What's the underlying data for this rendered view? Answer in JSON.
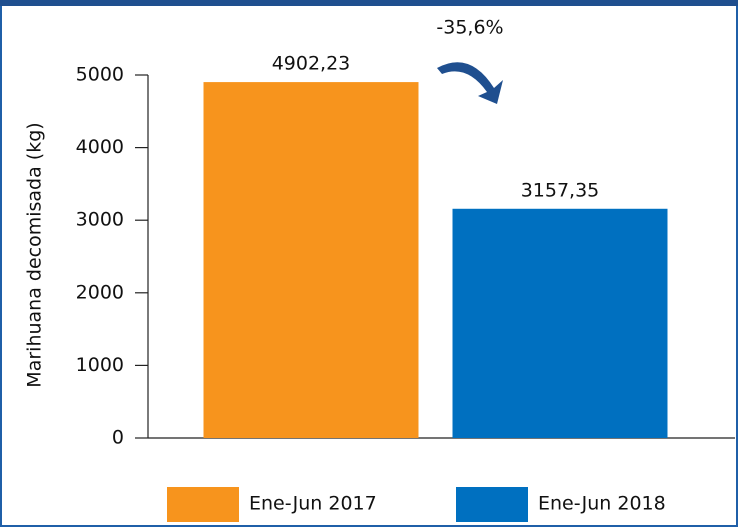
{
  "chart_data": {
    "type": "bar",
    "y_label": "Marihuana decomisada (kg)",
    "annotation": "-35,6%",
    "categories": [
      null
    ],
    "series": [
      {
        "name": "Ene-Jun 2017",
        "color": "#f7941d",
        "values": [
          4902.23
        ],
        "value_labels": [
          "4902,23"
        ]
      },
      {
        "name": "Ene-Jun 2018",
        "color": "#0070c0",
        "values": [
          3157.35
        ],
        "value_labels": [
          "3157,35"
        ]
      }
    ],
    "ylim": [
      0,
      5000
    ],
    "yticks": [
      0,
      1000,
      2000,
      3000,
      4000,
      5000
    ],
    "grid": false,
    "legend": "bottom"
  }
}
